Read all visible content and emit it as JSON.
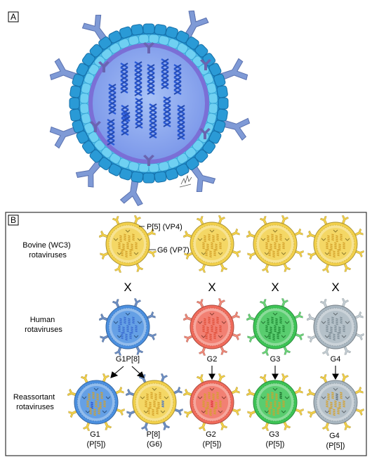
{
  "panel_a": {
    "letter": "A"
  },
  "panel_b": {
    "letter": "B",
    "annotations": {
      "vp4": "P[5] (VP4)",
      "vp7": "G6 (VP7)"
    },
    "rows": {
      "bovine": [
        "Bovine (WC3)",
        "rotaviruses"
      ],
      "human": [
        "Human",
        "rotaviruses"
      ],
      "reassortant": [
        "Reassortant",
        "rotaviruses"
      ]
    },
    "cross_symbol": "X",
    "human_labels": [
      "G1P[8]",
      "G2",
      "G3",
      "G4"
    ],
    "reassortant_labels": [
      [
        "G1",
        "(P[5])"
      ],
      [
        "P[8]",
        "(G6)"
      ],
      [
        "G2",
        "(P[5])"
      ],
      [
        "G3",
        "(P[5])"
      ],
      [
        "G4",
        "(P[5])"
      ]
    ]
  },
  "colors": {
    "bovine": "#f2d04a",
    "g1": "#4a8fe0",
    "g2": "#f06a5a",
    "g3": "#3cc455",
    "g4": "#a8b6c0",
    "capsid_a": "#2a9ad6",
    "core_a": "#8aaaf0",
    "rna_a": "#2a5ad8",
    "spike_a": "#7f9ad6"
  }
}
